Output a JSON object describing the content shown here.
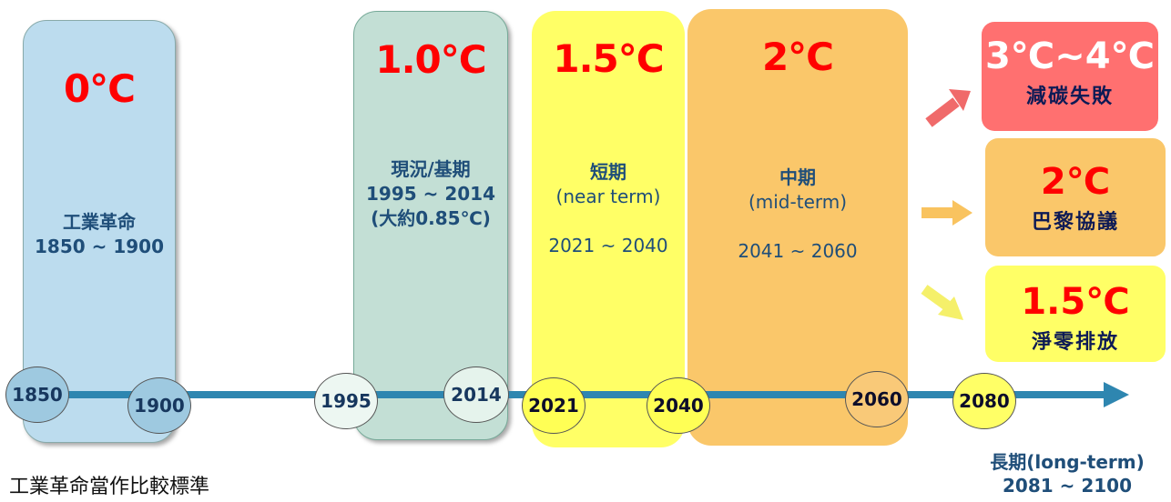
{
  "periods": [
    {
      "temp": "0℃",
      "lines": [
        "工業革命",
        "1850 ~ 1900"
      ]
    },
    {
      "temp": "1.0℃",
      "lines": [
        "現況/基期",
        "1995 ~ 2014",
        "(大約0.85℃)"
      ]
    },
    {
      "temp": "1.5℃",
      "lines": [
        "短期",
        "(near term)",
        "",
        "2021 ~ 2040"
      ]
    },
    {
      "temp": "2℃",
      "lines": [
        "中期",
        "(mid-term)",
        "",
        "2041 ~ 2060"
      ]
    }
  ],
  "years": [
    "1850",
    "1900",
    "1995",
    "2014",
    "2021",
    "2040",
    "2060",
    "2080"
  ],
  "scenarios": [
    {
      "temp": "3℃~4℃",
      "text": "減碳失敗",
      "temp_color": "#ffffff",
      "bg": "#ff7070"
    },
    {
      "temp": "2℃",
      "text": "巴黎協議",
      "temp_color": "#ff0000",
      "bg": "#fac76a"
    },
    {
      "temp": "1.5℃",
      "text": "淨零排放",
      "temp_color": "#ff0000",
      "bg": "#ffff66"
    }
  ],
  "long_term": {
    "label": "長期(long-term)",
    "range": "2081 ~ 2100"
  },
  "footnote": "工業革命當作比較標準",
  "colors": {
    "timeline": "#2e86b0",
    "industrial": "#bcdcee",
    "baseline": "#c3dfd5",
    "near": "#ffff66",
    "mid": "#fac76a",
    "temp_red": "#ff0000",
    "label_blue": "#1f4e79"
  }
}
